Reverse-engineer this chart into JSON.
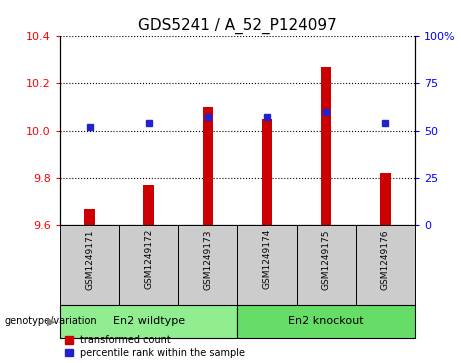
{
  "title": "GDS5241 / A_52_P124097",
  "categories": [
    "GSM1249171",
    "GSM1249172",
    "GSM1249173",
    "GSM1249174",
    "GSM1249175",
    "GSM1249176"
  ],
  "red_values": [
    9.67,
    9.77,
    10.1,
    10.05,
    10.27,
    9.82
  ],
  "blue_values": [
    52,
    54,
    57,
    57,
    60,
    54
  ],
  "ylim_left": [
    9.6,
    10.4
  ],
  "ylim_right": [
    0,
    100
  ],
  "yticks_left": [
    9.6,
    9.8,
    10.0,
    10.2,
    10.4
  ],
  "yticks_right": [
    0,
    25,
    50,
    75,
    100
  ],
  "ytick_labels_right": [
    "0",
    "25",
    "50",
    "75",
    "100%"
  ],
  "group1_label": "En2 wildtype",
  "group2_label": "En2 knockout",
  "group1_indices": [
    0,
    1,
    2
  ],
  "group2_indices": [
    3,
    4,
    5
  ],
  "genotype_label": "genotype/variation",
  "legend_red": "transformed count",
  "legend_blue": "percentile rank within the sample",
  "bar_bottom": 9.6,
  "red_color": "#cc0000",
  "blue_color": "#2222cc",
  "group1_color": "#90ee90",
  "group2_color": "#66dd66",
  "label_area_color": "#cccccc",
  "title_fontsize": 11,
  "tick_fontsize": 8,
  "bar_width": 0.18
}
